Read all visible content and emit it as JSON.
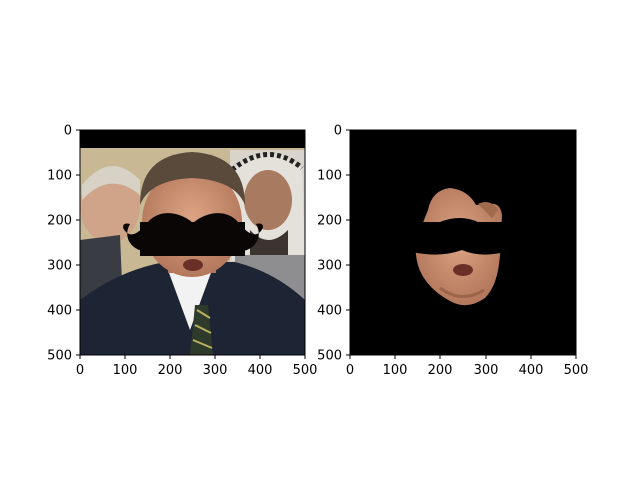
{
  "figure": {
    "panels": [
      {
        "name": "original-with-mustache",
        "image_content": "photo of man in suit with drawn black mustache over face, black band at top",
        "x_ticks": [
          "0",
          "100",
          "200",
          "300",
          "400",
          "500"
        ],
        "y_ticks": [
          "0",
          "100",
          "200",
          "300",
          "400",
          "500"
        ],
        "xlim": [
          0,
          500
        ],
        "ylim": [
          500,
          0
        ]
      },
      {
        "name": "masked-face",
        "image_content": "black background with only the face region visible, mustache area blacked out",
        "x_ticks": [
          "0",
          "100",
          "200",
          "300",
          "400",
          "500"
        ],
        "y_ticks": [
          "0",
          "100",
          "200",
          "300",
          "400",
          "500"
        ],
        "xlim": [
          0,
          500
        ],
        "ylim": [
          500,
          0
        ]
      }
    ],
    "colors": {
      "background": "#ffffff",
      "mask": "#000000",
      "mustache": "#0a0606",
      "skin": "#c89070",
      "suit": "#1d2433",
      "hair": "#5a4a3c"
    }
  }
}
